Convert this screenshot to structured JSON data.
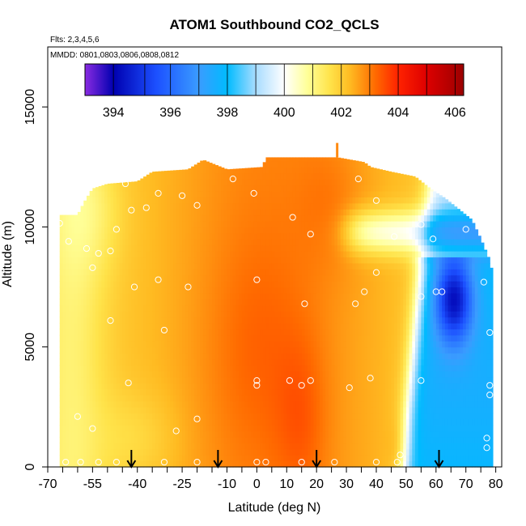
{
  "chart_data": {
    "type": "heatmap",
    "title": "ATOM1 Southbound CO2_QCLS",
    "flights_label": "Flts: 2,3,4,5,6",
    "dates_label": "MMDD: 0801,0803,0806,0808,0812",
    "xlabel": "Latitude (deg N)",
    "ylabel": "Altitude (m)",
    "xlim": [
      -70,
      82
    ],
    "ylim": [
      0,
      17500
    ],
    "x_ticks": [
      -70,
      -55,
      -40,
      -25,
      -10,
      0,
      10,
      20,
      30,
      40,
      50,
      60,
      70,
      80
    ],
    "x_tick_labels": [
      "-70",
      "-55",
      "-40",
      "-25",
      "-10",
      "0",
      "10",
      "20",
      "30",
      "40",
      "50",
      "60",
      "70",
      "80"
    ],
    "x_minor_ticks": [
      -65,
      -60,
      -50,
      -45,
      -35,
      -30,
      -20,
      -15,
      -5,
      5,
      15,
      25,
      35,
      45,
      55,
      65,
      75
    ],
    "y_ticks": [
      0,
      5000,
      10000,
      15000
    ],
    "y_tick_labels": [
      "0",
      "5000",
      "10000",
      "15000"
    ],
    "colorbar": {
      "range": [
        393,
        406.3
      ],
      "ticks": [
        394,
        396,
        398,
        400,
        402,
        404,
        406
      ],
      "tick_labels": [
        "394",
        "396",
        "398",
        "400",
        "402",
        "404",
        "406"
      ],
      "boundaries": [
        394,
        395.1,
        396,
        397,
        398,
        399,
        400,
        401,
        402,
        403,
        404,
        405,
        406
      ],
      "stops": [
        {
          "v": 393.0,
          "c": "#8a2be2"
        },
        {
          "v": 394.0,
          "c": "#0000b0"
        },
        {
          "v": 395.5,
          "c": "#1c50ff"
        },
        {
          "v": 397.0,
          "c": "#3a9cff"
        },
        {
          "v": 398.0,
          "c": "#00bbff"
        },
        {
          "v": 399.0,
          "c": "#a8dcff"
        },
        {
          "v": 400.0,
          "c": "#ffffff"
        },
        {
          "v": 400.8,
          "c": "#ffff99"
        },
        {
          "v": 401.6,
          "c": "#ffe34a"
        },
        {
          "v": 402.3,
          "c": "#ffbb22"
        },
        {
          "v": 403.2,
          "c": "#ff6a00"
        },
        {
          "v": 404.0,
          "c": "#ff2200"
        },
        {
          "v": 405.0,
          "c": "#dd0000"
        },
        {
          "v": 406.3,
          "c": "#9b0000"
        }
      ]
    },
    "domain": {
      "lat_min": -66,
      "lat_max": 79,
      "upper_envelope": [
        [
          -66,
          10500
        ],
        [
          -60,
          10500
        ],
        [
          -58,
          11000
        ],
        [
          -55,
          11600
        ],
        [
          -50,
          11800
        ],
        [
          -40,
          11900
        ],
        [
          -35,
          12300
        ],
        [
          -23,
          12400
        ],
        [
          -18,
          12800
        ],
        [
          -10,
          12400
        ],
        [
          2,
          12500
        ],
        [
          3,
          12900
        ],
        [
          27,
          12900
        ],
        [
          36,
          12700
        ],
        [
          38,
          12500
        ],
        [
          45,
          12300
        ],
        [
          53,
          12100
        ],
        [
          58,
          11600
        ],
        [
          63,
          11200
        ],
        [
          68,
          10700
        ],
        [
          72,
          10300
        ],
        [
          75,
          9500
        ],
        [
          78,
          8600
        ],
        [
          79,
          8000
        ]
      ]
    },
    "field_description": "Latitude-altitude curtain of CO2 (ppm) from QCLS",
    "observation_points": [
      [
        -66,
        10150
      ],
      [
        -63,
        9400
      ],
      [
        -57,
        9100
      ],
      [
        -55,
        8300
      ],
      [
        -53,
        8900
      ],
      [
        -49,
        9000
      ],
      [
        -47,
        9900
      ],
      [
        -44,
        11800
      ],
      [
        -42,
        10700
      ],
      [
        -37,
        10800
      ],
      [
        -33,
        11400
      ],
      [
        -25,
        11300
      ],
      [
        -20,
        10900
      ],
      [
        -8,
        12000
      ],
      [
        -1,
        11400
      ],
      [
        12,
        10400
      ],
      [
        18,
        9700
      ],
      [
        34,
        12000
      ],
      [
        40,
        11100
      ],
      [
        40,
        8100
      ],
      [
        36,
        7300
      ],
      [
        33,
        6800
      ],
      [
        16,
        6800
      ],
      [
        0,
        7800
      ],
      [
        -23,
        7500
      ],
      [
        -33,
        7800
      ],
      [
        -41,
        7500
      ],
      [
        -49,
        6100
      ],
      [
        -31,
        5700
      ],
      [
        -43,
        3500
      ],
      [
        0,
        3400
      ],
      [
        0,
        3600
      ],
      [
        11,
        3600
      ],
      [
        15,
        3400
      ],
      [
        18,
        3600
      ],
      [
        31,
        3300
      ],
      [
        38,
        3700
      ],
      [
        -60,
        2100
      ],
      [
        -55,
        1600
      ],
      [
        -27,
        1500
      ],
      [
        -20,
        2000
      ],
      [
        -64,
        200
      ],
      [
        -59,
        200
      ],
      [
        -53,
        200
      ],
      [
        -47,
        200
      ],
      [
        -31,
        200
      ],
      [
        -20,
        200
      ],
      [
        0,
        200
      ],
      [
        3,
        200
      ],
      [
        15,
        200
      ],
      [
        26,
        200
      ],
      [
        40,
        200
      ],
      [
        47,
        200
      ],
      [
        48,
        500
      ],
      [
        55,
        3600
      ],
      [
        62,
        7300
      ],
      [
        55,
        7100
      ],
      [
        60,
        7300
      ],
      [
        55,
        10100
      ],
      [
        59,
        9500
      ],
      [
        46,
        9600
      ],
      [
        70,
        9900
      ],
      [
        75,
        10800
      ],
      [
        76,
        7700
      ],
      [
        78,
        5600
      ],
      [
        78,
        3400
      ],
      [
        78,
        3000
      ],
      [
        77,
        1200
      ],
      [
        77,
        800
      ]
    ],
    "arrows_lat": [
      -42,
      -13,
      20,
      61
    ]
  }
}
